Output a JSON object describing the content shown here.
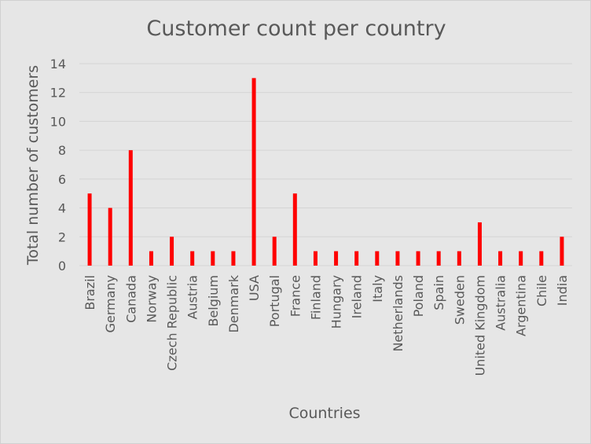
{
  "chart_data": {
    "type": "bar",
    "title": "Customer count per country",
    "xlabel": "Countries",
    "ylabel": "Total number of customers",
    "categories": [
      "Brazil",
      "Germany",
      "Canada",
      "Norway",
      "Czech Republic",
      "Austria",
      "Belgium",
      "Denmark",
      "USA",
      "Portugal",
      "France",
      "Finland",
      "Hungary",
      "Ireland",
      "Italy",
      "Netherlands",
      "Poland",
      "Spain",
      "Sweden",
      "United Kingdom",
      "Australia",
      "Argentina",
      "Chile",
      "India"
    ],
    "values": [
      5,
      4,
      8,
      1,
      2,
      1,
      1,
      1,
      13,
      2,
      5,
      1,
      1,
      1,
      1,
      1,
      1,
      1,
      1,
      3,
      1,
      1,
      1,
      2
    ],
    "ylim": [
      0,
      14
    ],
    "yticks": [
      0,
      2,
      4,
      6,
      8,
      10,
      12,
      14
    ],
    "grid": true,
    "legend": "none",
    "colors": {
      "bar": "#ff0000",
      "background": "#e6e6e6",
      "text": "#595959",
      "grid": "#d4d4d4"
    }
  }
}
